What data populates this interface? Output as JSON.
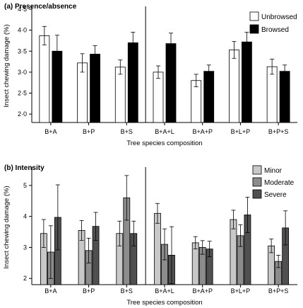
{
  "chart_data": [
    {
      "type": "bar",
      "panel_label": "(a) Presence/absence",
      "xlabel": "Tree species composition",
      "ylabel": "Insect chewing damage (%)",
      "ylim": [
        1.8,
        4.5
      ],
      "yticks": [
        "2·0",
        "2·5",
        "3·0",
        "3·5",
        "4·0",
        "4·5"
      ],
      "ytick_values": [
        2.0,
        2.5,
        3.0,
        3.5,
        4.0,
        4.5
      ],
      "categories": [
        "B+A",
        "B+P",
        "B+S",
        "B+A+L",
        "B+A+P",
        "B+L+P",
        "B+P+S"
      ],
      "divider_after_index": 2,
      "legend_position": "top-right",
      "series": [
        {
          "name": "Unbrowsed",
          "color": "#ffffff",
          "values": [
            3.87,
            3.22,
            3.12,
            3.0,
            2.8,
            3.53,
            3.13
          ],
          "errors": [
            0.22,
            0.22,
            0.17,
            0.15,
            0.15,
            0.2,
            0.18
          ]
        },
        {
          "name": "Browsed",
          "color": "#000000",
          "values": [
            3.5,
            3.43,
            3.7,
            3.68,
            3.02,
            3.72,
            3.02
          ],
          "errors": [
            0.38,
            0.2,
            0.25,
            0.25,
            0.15,
            0.23,
            0.15
          ]
        }
      ]
    },
    {
      "type": "bar",
      "panel_label": "(b) Intensity",
      "xlabel": "Tree species composition",
      "ylabel": "Insect chewing damage (%)",
      "ylim": [
        1.8,
        5.5
      ],
      "yticks": [
        "2",
        "3",
        "4",
        "5"
      ],
      "ytick_values": [
        2,
        3,
        4,
        5
      ],
      "categories": [
        "B+A",
        "B+P",
        "B+S",
        "B+A+L",
        "B+A+P",
        "B+L+P",
        "B+P+S"
      ],
      "divider_after_index": 2,
      "legend_position": "top-right",
      "series": [
        {
          "name": "Minor",
          "color": "#c8c8c8",
          "values": [
            3.45,
            3.55,
            3.45,
            4.1,
            3.15,
            3.9,
            3.05
          ],
          "errors": [
            0.45,
            0.32,
            0.4,
            0.32,
            0.2,
            0.3,
            0.22
          ]
        },
        {
          "name": "Moderate",
          "color": "#8c8c8c",
          "values": [
            2.85,
            2.9,
            4.6,
            3.1,
            3.0,
            3.38,
            2.55
          ],
          "errors": [
            0.85,
            0.4,
            0.72,
            0.5,
            0.22,
            0.35,
            0.2
          ]
        },
        {
          "name": "Severe",
          "color": "#505050",
          "values": [
            3.97,
            3.68,
            3.45,
            2.75,
            2.95,
            4.05,
            3.63
          ],
          "errors": [
            1.05,
            0.45,
            0.4,
            0.92,
            0.25,
            0.57,
            0.55
          ]
        }
      ]
    }
  ]
}
